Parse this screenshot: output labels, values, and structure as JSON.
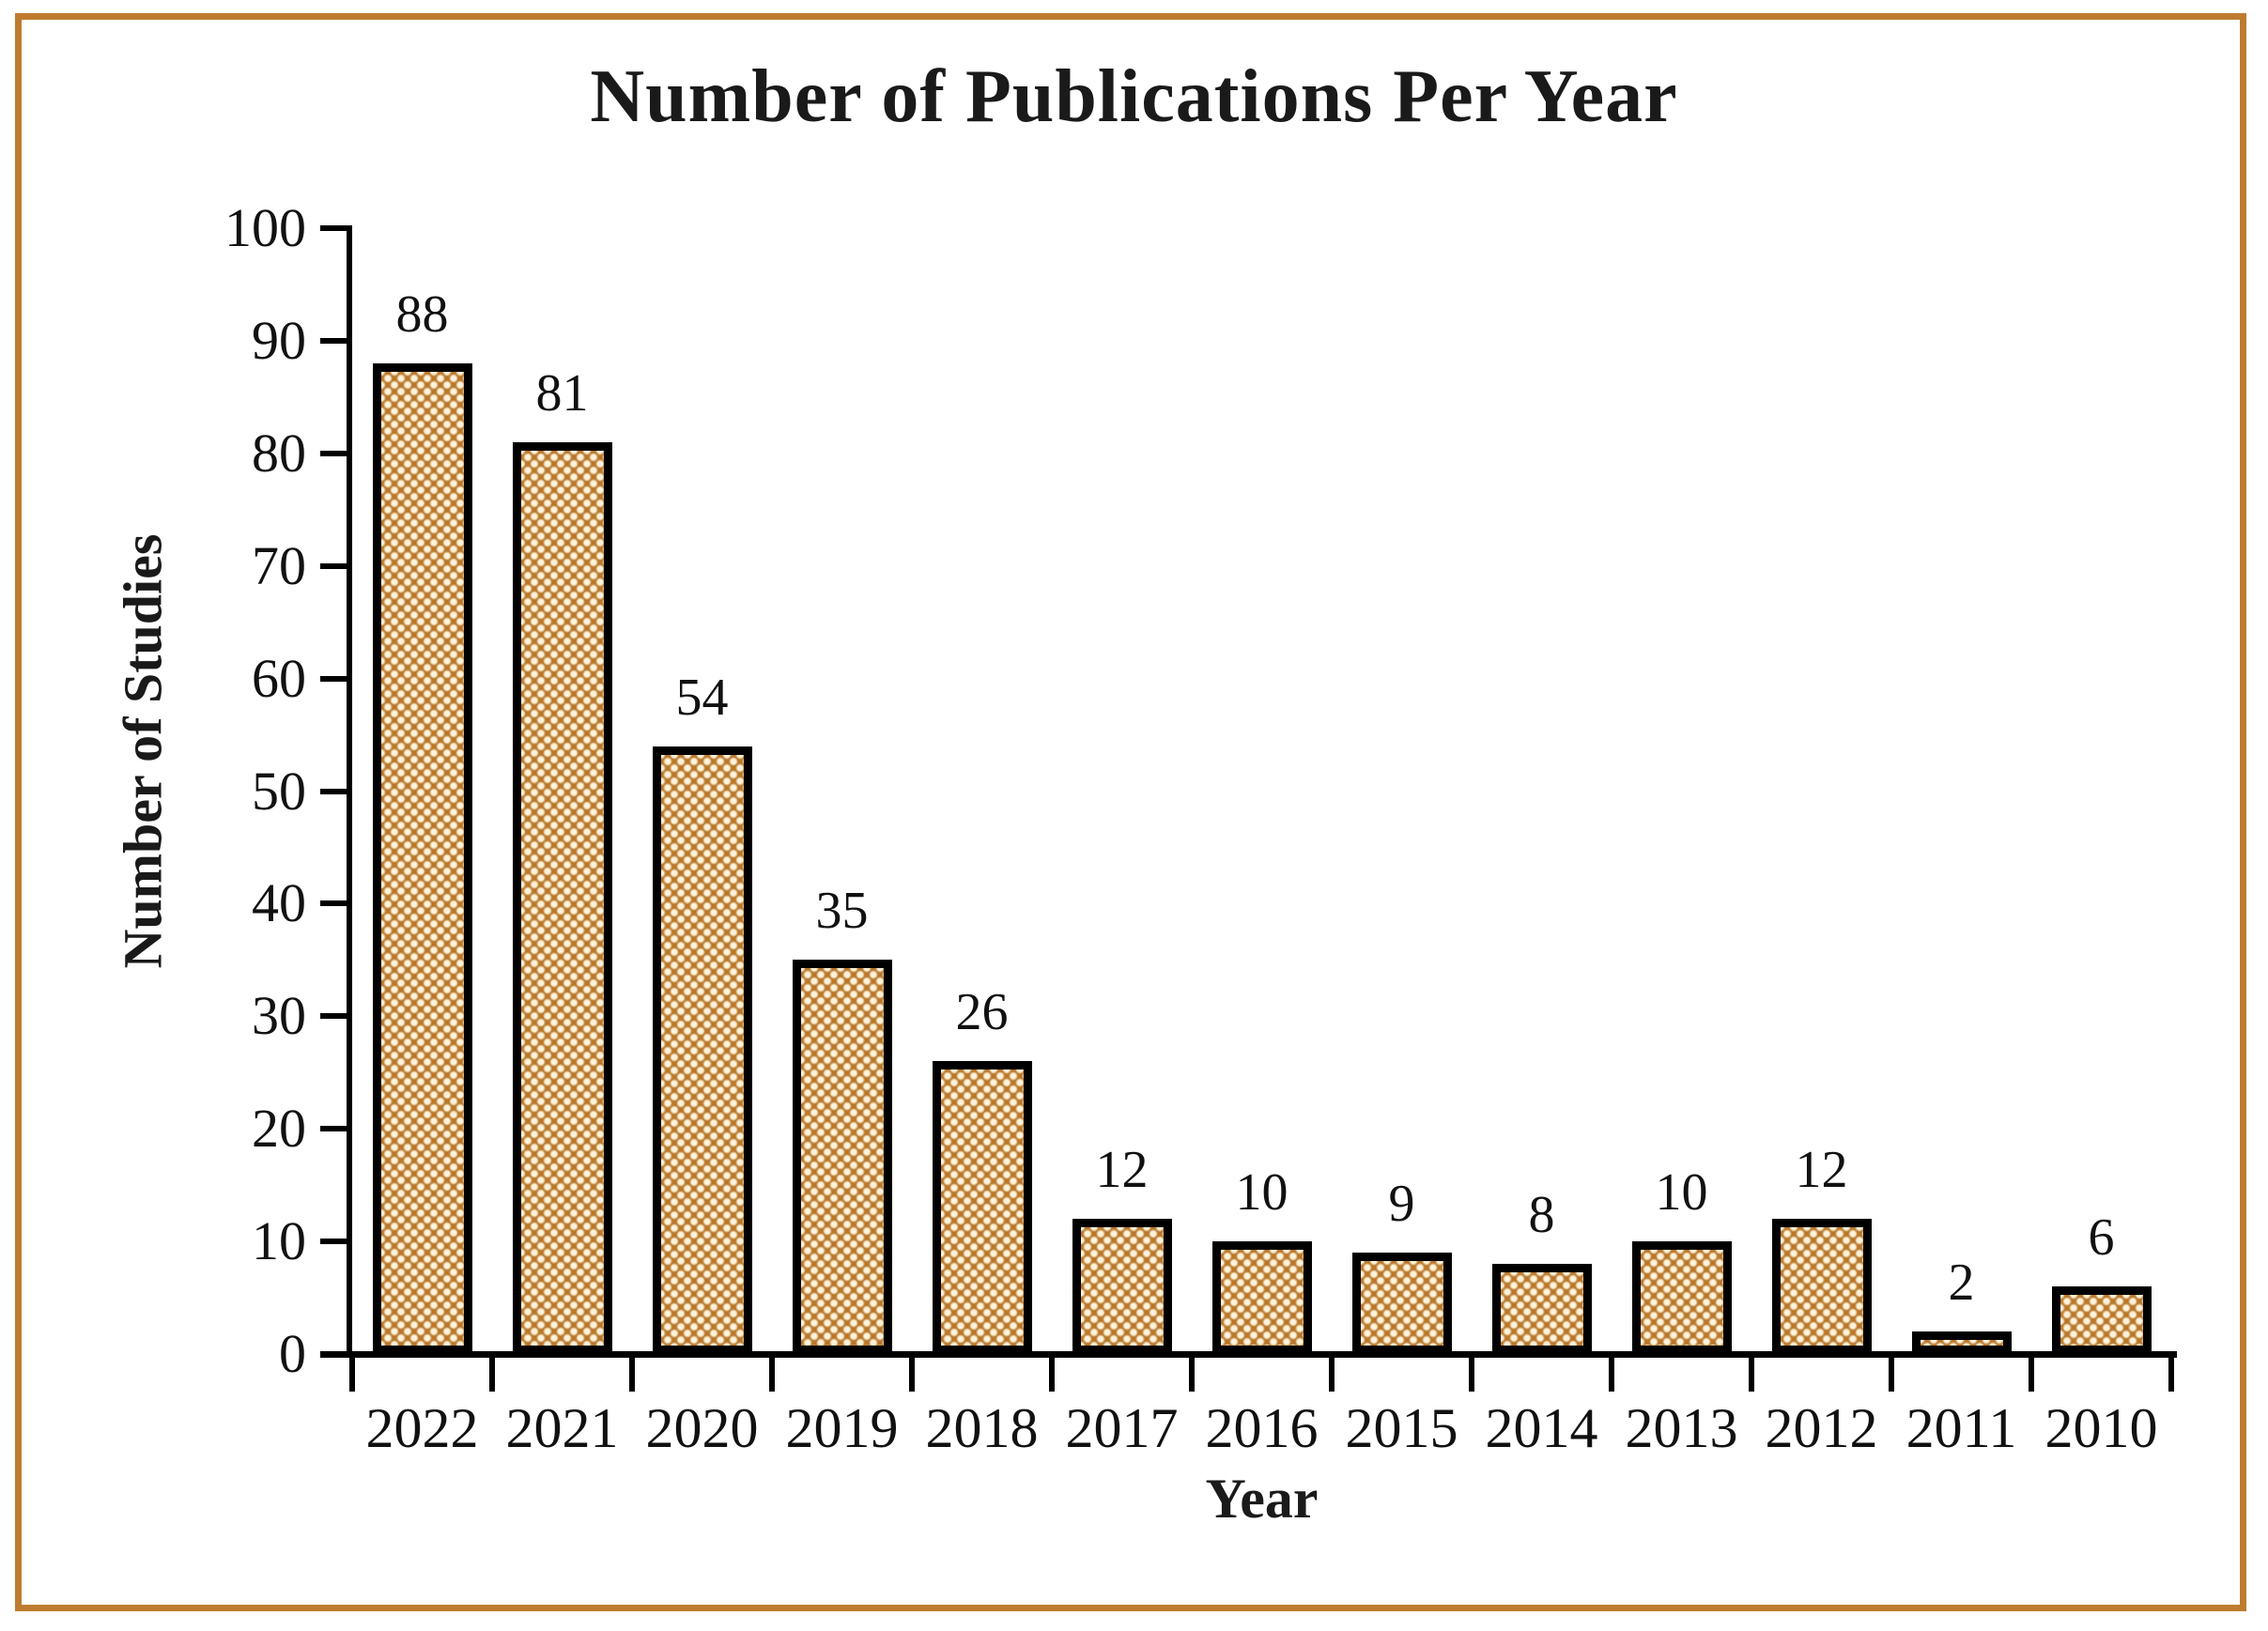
{
  "frame": {
    "border_color": "#bf7b2e"
  },
  "chart_data": {
    "type": "bar",
    "title": "Number of Publications Per Year",
    "xlabel": "Year",
    "ylabel": "Number of Studies",
    "categories": [
      "2022",
      "2021",
      "2020",
      "2019",
      "2018",
      "2017",
      "2016",
      "2015",
      "2014",
      "2013",
      "2012",
      "2011",
      "2010"
    ],
    "values": [
      88,
      81,
      54,
      35,
      26,
      12,
      10,
      9,
      8,
      10,
      12,
      2,
      6
    ],
    "data_labels": [
      "88",
      "81",
      "54",
      "35",
      "26",
      "12",
      "10",
      "9",
      "8",
      "10",
      "12",
      "2",
      "6"
    ],
    "ylim": [
      0,
      100
    ],
    "yticks": [
      0,
      10,
      20,
      30,
      40,
      50,
      60,
      70,
      80,
      90,
      100
    ],
    "grid": false,
    "legend": null,
    "bar_fill_color": "#b9772a",
    "bar_pattern_dot_color": "#fdf2da",
    "bar_border_color": "#000000",
    "axis_color": "#000000"
  }
}
